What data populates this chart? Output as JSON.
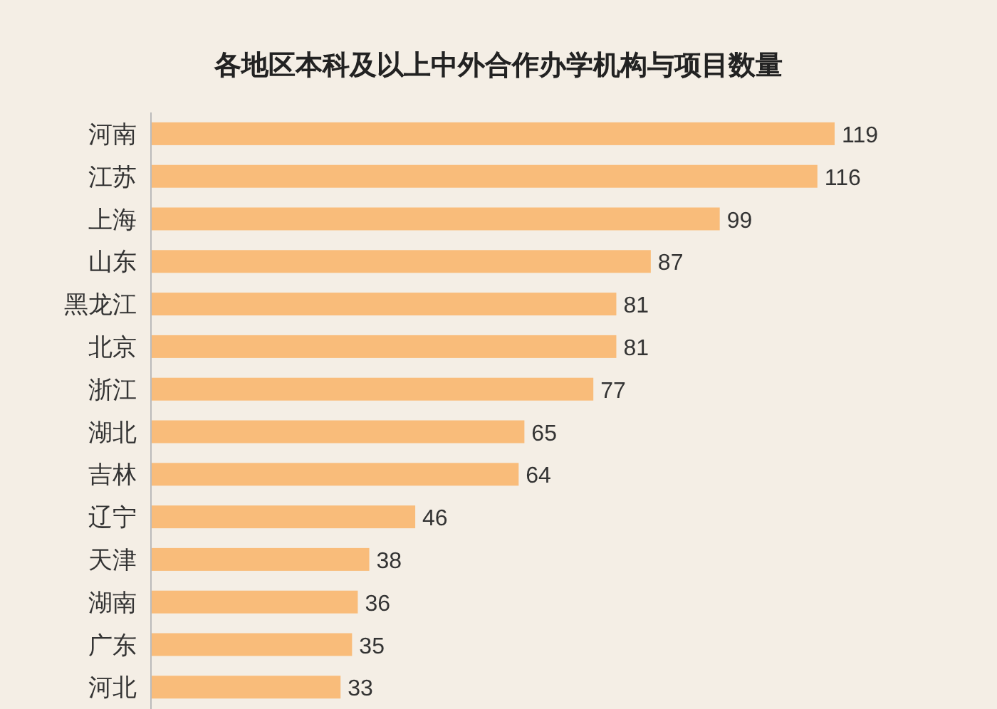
{
  "chart_data": {
    "type": "bar",
    "orientation": "horizontal",
    "title": "各地区本科及以上中外合作办学机构与项目数量",
    "categories": [
      "河南",
      "江苏",
      "上海",
      "山东",
      "黑龙江",
      "北京",
      "浙江",
      "湖北",
      "吉林",
      "辽宁",
      "天津",
      "湖南",
      "广东",
      "河北"
    ],
    "values": [
      119,
      116,
      99,
      87,
      81,
      81,
      77,
      65,
      64,
      46,
      38,
      36,
      35,
      33
    ],
    "color": "#f9bc7a",
    "data_labels": true
  }
}
